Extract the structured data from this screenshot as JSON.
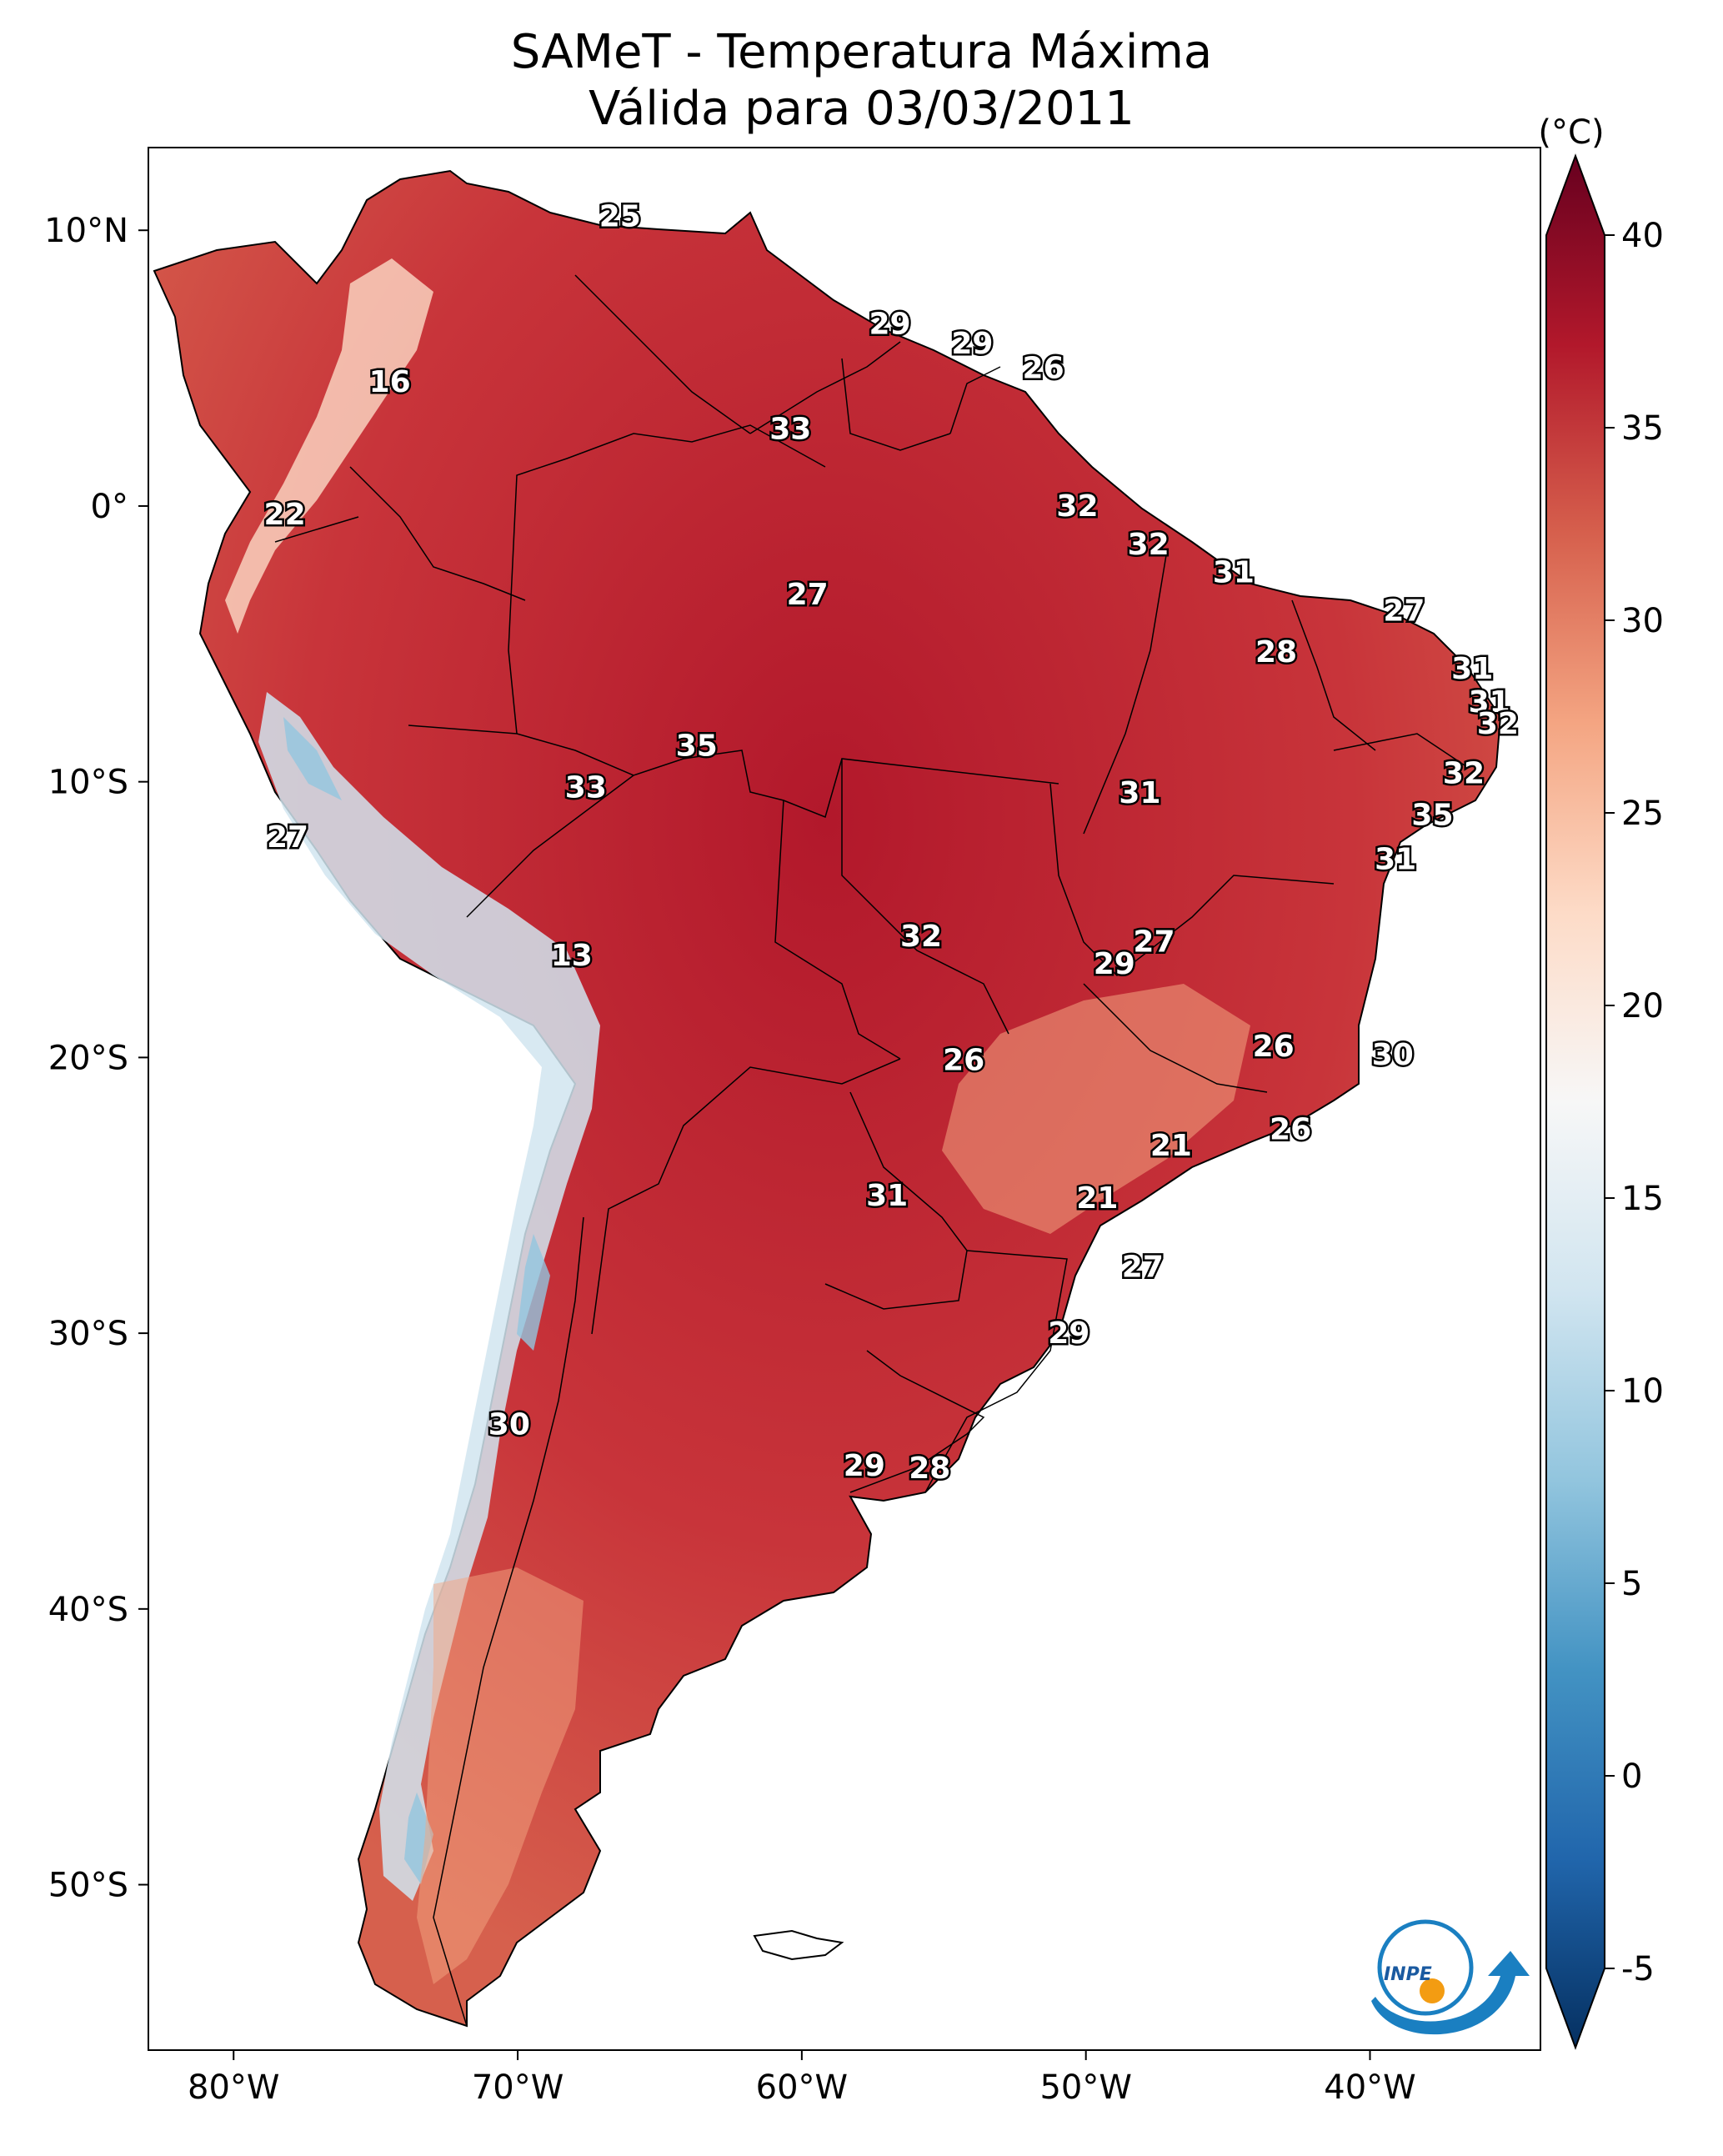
{
  "title": {
    "line1": "SAMeT - Temperatura Máxima",
    "line2": "Válida para 03/03/2011"
  },
  "colorbar": {
    "unit": "(°C)",
    "ticks": [
      {
        "value": 40,
        "label": "40"
      },
      {
        "value": 35,
        "label": "35"
      },
      {
        "value": 30,
        "label": "30"
      },
      {
        "value": 25,
        "label": "25"
      },
      {
        "value": 20,
        "label": "20"
      },
      {
        "value": 15,
        "label": "15"
      },
      {
        "value": 10,
        "label": "10"
      },
      {
        "value": 5,
        "label": "5"
      },
      {
        "value": 0,
        "label": "0"
      },
      {
        "value": -5,
        "label": "-5"
      }
    ],
    "range": [
      -5,
      40
    ],
    "colors": [
      "#053061",
      "#2166ac",
      "#4393c3",
      "#92c5de",
      "#d1e5f0",
      "#f7f7f7",
      "#fddbc7",
      "#f4a582",
      "#d6604d",
      "#b2182b",
      "#67001f"
    ]
  },
  "map": {
    "lon_range": [
      -83,
      -34
    ],
    "lat_range": [
      -56,
      13
    ],
    "lon_ticks": [
      {
        "value": -80,
        "label": "80°W"
      },
      {
        "value": -70,
        "label": "70°W"
      },
      {
        "value": -60,
        "label": "60°W"
      },
      {
        "value": -50,
        "label": "50°W"
      },
      {
        "value": -40,
        "label": "40°W"
      }
    ],
    "lat_ticks": [
      {
        "value": 10,
        "label": "10°N"
      },
      {
        "value": 0,
        "label": "0°"
      },
      {
        "value": -10,
        "label": "10°S"
      },
      {
        "value": -20,
        "label": "20°S"
      },
      {
        "value": -30,
        "label": "30°S"
      },
      {
        "value": -40,
        "label": "40°S"
      },
      {
        "value": -50,
        "label": "50°S"
      }
    ],
    "point_labels": [
      {
        "lon": -66.4,
        "lat": 10.5,
        "text": "25"
      },
      {
        "lon": -74.5,
        "lat": 4.5,
        "text": "16"
      },
      {
        "lon": -78.2,
        "lat": -0.3,
        "text": "22"
      },
      {
        "lon": -56.9,
        "lat": 6.6,
        "text": "29"
      },
      {
        "lon": -54.0,
        "lat": 5.9,
        "text": "29"
      },
      {
        "lon": -51.5,
        "lat": 5.0,
        "text": "26"
      },
      {
        "lon": -60.4,
        "lat": 2.8,
        "text": "33"
      },
      {
        "lon": -50.3,
        "lat": 0.0,
        "text": "32"
      },
      {
        "lon": -47.8,
        "lat": -1.4,
        "text": "32"
      },
      {
        "lon": -44.8,
        "lat": -2.4,
        "text": "31"
      },
      {
        "lon": -38.8,
        "lat": -3.8,
        "text": "27"
      },
      {
        "lon": -43.3,
        "lat": -5.3,
        "text": "28"
      },
      {
        "lon": -59.8,
        "lat": -3.2,
        "text": "27"
      },
      {
        "lon": -36.4,
        "lat": -5.9,
        "text": "31"
      },
      {
        "lon": -35.8,
        "lat": -7.1,
        "text": "31"
      },
      {
        "lon": -35.5,
        "lat": -7.9,
        "text": "32"
      },
      {
        "lon": -63.7,
        "lat": -8.7,
        "text": "35"
      },
      {
        "lon": -67.6,
        "lat": -10.2,
        "text": "33"
      },
      {
        "lon": -48.1,
        "lat": -10.4,
        "text": "31"
      },
      {
        "lon": -36.7,
        "lat": -9.7,
        "text": "32"
      },
      {
        "lon": -37.8,
        "lat": -11.2,
        "text": "35"
      },
      {
        "lon": -78.1,
        "lat": -12.0,
        "text": "27"
      },
      {
        "lon": -39.1,
        "lat": -12.8,
        "text": "31"
      },
      {
        "lon": -68.1,
        "lat": -16.3,
        "text": "13"
      },
      {
        "lon": -55.8,
        "lat": -15.6,
        "text": "32"
      },
      {
        "lon": -47.6,
        "lat": -15.8,
        "text": "27"
      },
      {
        "lon": -49.0,
        "lat": -16.6,
        "text": "29"
      },
      {
        "lon": -54.3,
        "lat": -20.1,
        "text": "26"
      },
      {
        "lon": -43.4,
        "lat": -19.6,
        "text": "26"
      },
      {
        "lon": -39.2,
        "lat": -19.9,
        "text": "30"
      },
      {
        "lon": -47.0,
        "lat": -23.2,
        "text": "21"
      },
      {
        "lon": -42.8,
        "lat": -22.6,
        "text": "26"
      },
      {
        "lon": -57.0,
        "lat": -25.0,
        "text": "31"
      },
      {
        "lon": -49.6,
        "lat": -25.1,
        "text": "21"
      },
      {
        "lon": -48.0,
        "lat": -27.6,
        "text": "27"
      },
      {
        "lon": -50.6,
        "lat": -30.0,
        "text": "29"
      },
      {
        "lon": -70.3,
        "lat": -33.3,
        "text": "30"
      },
      {
        "lon": -57.8,
        "lat": -34.8,
        "text": "29"
      },
      {
        "lon": -55.5,
        "lat": -34.9,
        "text": "28"
      }
    ]
  },
  "logo": {
    "text": "INPE"
  }
}
